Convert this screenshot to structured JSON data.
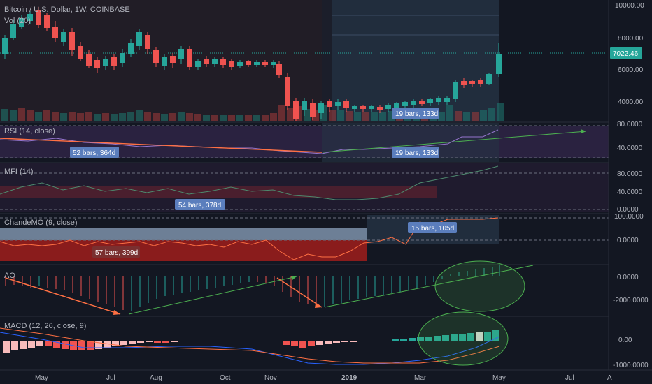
{
  "title": "Bitcoin / U.S. Dollar, 1W, COINBASE",
  "volume_label": "Vol (20)",
  "price_axis": [
    "10000.00",
    "8000.00",
    "6000.00",
    "4000.00"
  ],
  "last_price": "7022.46",
  "time_axis": [
    "May",
    "Jul",
    "Aug",
    "Oct",
    "Nov",
    "2019",
    "Mar",
    "May",
    "Jul",
    "A"
  ],
  "panels": [
    {
      "label": "RSI (14, close)",
      "axis": [
        "80.0000",
        "40.0000"
      ],
      "measures": [
        "52 bars, 364d",
        "19 bars, 133d"
      ]
    },
    {
      "label": "MFI (14)",
      "axis": [
        "80.0000",
        "40.0000",
        "0.0000"
      ],
      "measures": [
        "54 bars, 378d"
      ]
    },
    {
      "label": "ChandeMO (9, close)",
      "axis": [
        "100.0000",
        "0.0000"
      ],
      "measures": [
        "57 bars, 399d",
        "15 bars, 105d"
      ]
    },
    {
      "label": "AO",
      "axis": [
        "0.0000",
        "-2000.0000"
      ],
      "measures": []
    },
    {
      "label": "MACD (12, 26, close, 9)",
      "axis": [
        "0.00",
        "-1000.0000"
      ],
      "measures": []
    }
  ],
  "price_measure": "19 bars, 133d",
  "colors": {
    "bg": "#131722",
    "up": "#26a69a",
    "down": "#ef5350",
    "grid": "#2a2e39",
    "accent": "#5b7ebd",
    "green_line": "#4caf50",
    "orange_line": "#ff7043",
    "rsi_bg": "#3b2a5b"
  }
}
